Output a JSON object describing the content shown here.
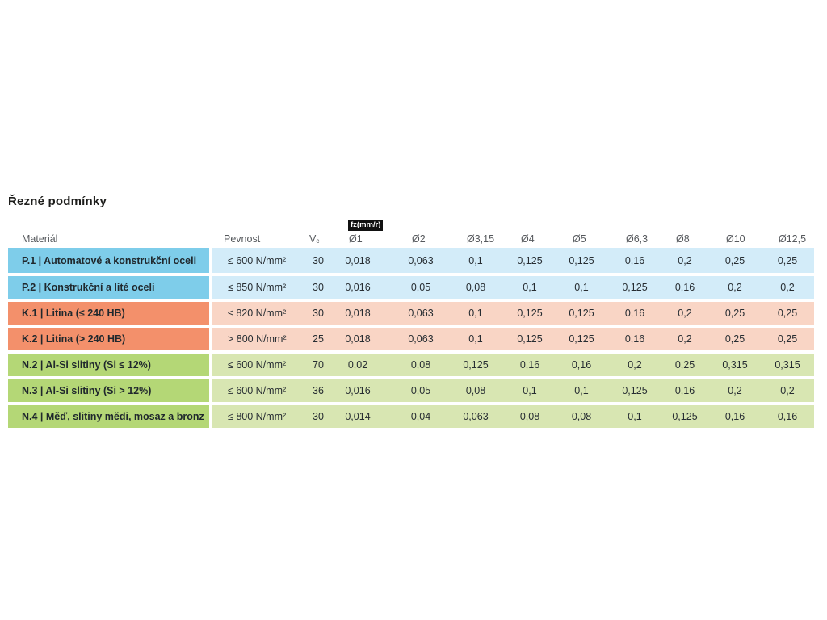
{
  "page": {
    "title": "Řezné podmínky"
  },
  "table": {
    "fz_badge": "fz(mm/r)",
    "headers": {
      "material": "Materiál",
      "pevnost": "Pevnost",
      "vc_main": "V",
      "vc_sub": "c",
      "diameters": [
        "Ø1",
        "Ø2",
        "Ø3,15",
        "Ø4",
        "Ø5",
        "Ø6,3",
        "Ø8",
        "Ø10",
        "Ø12,5"
      ]
    },
    "rows": [
      {
        "group": "steel",
        "label": "P.1 | Automatové a konstrukční oceli",
        "pevnost": "≤ 600 N/mm²",
        "vc": "30",
        "values": [
          "0,018",
          "0,063",
          "0,1",
          "0,125",
          "0,125",
          "0,16",
          "0,2",
          "0,25",
          "0,25"
        ]
      },
      {
        "group": "steel",
        "label": "P.2 | Konstrukční a lité oceli",
        "pevnost": "≤ 850 N/mm²",
        "vc": "30",
        "values": [
          "0,016",
          "0,05",
          "0,08",
          "0,1",
          "0,1",
          "0,125",
          "0,16",
          "0,2",
          "0,2"
        ]
      },
      {
        "group": "cast_iron",
        "label": "K.1 | Litina (≤ 240 HB)",
        "pevnost": "≤ 820 N/mm²",
        "vc": "30",
        "values": [
          "0,018",
          "0,063",
          "0,1",
          "0,125",
          "0,125",
          "0,16",
          "0,2",
          "0,25",
          "0,25"
        ]
      },
      {
        "group": "cast_iron",
        "label": "K.2 | Litina (> 240 HB)",
        "pevnost": "> 800 N/mm²",
        "vc": "25",
        "values": [
          "0,018",
          "0,063",
          "0,1",
          "0,125",
          "0,125",
          "0,16",
          "0,2",
          "0,25",
          "0,25"
        ]
      },
      {
        "group": "non_ferrous",
        "label": "N.2 | Al-Si slitiny (Si ≤ 12%)",
        "pevnost": "≤ 600 N/mm²",
        "vc": "70",
        "values": [
          "0,02",
          "0,08",
          "0,125",
          "0,16",
          "0,16",
          "0,2",
          "0,25",
          "0,315",
          "0,315"
        ]
      },
      {
        "group": "non_ferrous",
        "label": "N.3 | Al-Si slitiny (Si > 12%)",
        "pevnost": "≤ 600 N/mm²",
        "vc": "36",
        "values": [
          "0,016",
          "0,05",
          "0,08",
          "0,1",
          "0,1",
          "0,125",
          "0,16",
          "0,2",
          "0,2"
        ]
      },
      {
        "group": "non_ferrous",
        "label": "N.4 | Měď, slitiny mědi, mosaz a bronz",
        "pevnost": "≤ 800 N/mm²",
        "vc": "30",
        "values": [
          "0,014",
          "0,04",
          "0,063",
          "0,08",
          "0,08",
          "0,1",
          "0,125",
          "0,16",
          "0,16"
        ]
      }
    ]
  },
  "colors": {
    "steel": {
      "label_bg": "#7ecdea",
      "band_bg": "#d3ecf9"
    },
    "cast_iron": {
      "label_bg": "#f3906b",
      "band_bg": "#f9d5c5"
    },
    "non_ferrous": {
      "label_bg": "#b4d776",
      "band_bg": "#d8e6b2"
    },
    "badge_bg": "#111111",
    "badge_text": "#ffffff",
    "header_text": "#55585c",
    "body_text": "#272d32"
  }
}
